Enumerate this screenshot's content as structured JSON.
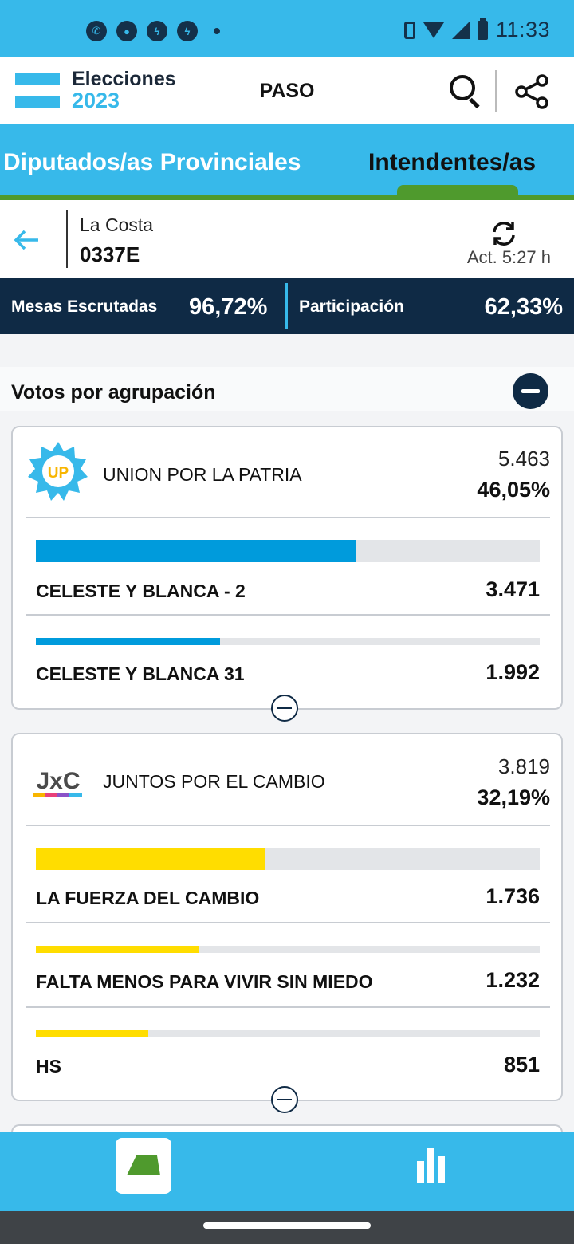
{
  "status_bar": {
    "time": "11:33",
    "notifications": [
      "whatsapp-icon",
      "chat-icon",
      "messenger-icon",
      "messenger-icon"
    ]
  },
  "header": {
    "logo_line1": "Elecciones",
    "logo_line2": "2023",
    "title": "PASO"
  },
  "tabs": [
    {
      "label": "Diputados/as Provinciales",
      "active": false
    },
    {
      "label": "Intendentes/as",
      "active": true
    }
  ],
  "location": {
    "name": "La Costa",
    "code": "0337E",
    "updated": "Act. 5:27 h"
  },
  "stats": {
    "mesas_label": "Mesas Escrutadas",
    "mesas_value": "96,72%",
    "participacion_label": "Participación",
    "participacion_value": "62,33%"
  },
  "section": {
    "title": "Votos por agrupación"
  },
  "parties": [
    {
      "name": "UNION POR LA PATRIA",
      "logo_text": "UP",
      "votes": "5.463",
      "percent": "46,05%",
      "color": "#009bdc",
      "lists": [
        {
          "name": "CELESTE Y BLANCA - 2",
          "votes": "3.471",
          "share": 0.635
        },
        {
          "name": "CELESTE Y BLANCA 31",
          "votes": "1.992",
          "share": 0.365
        }
      ]
    },
    {
      "name": "JUNTOS POR EL CAMBIO",
      "logo_text": "JxC",
      "votes": "3.819",
      "percent": "32,19%",
      "color": "#ffdd00",
      "lists": [
        {
          "name": "LA FUERZA DEL CAMBIO",
          "votes": "1.736",
          "share": 0.455
        },
        {
          "name": "FALTA MENOS PARA VIVIR SIN MIEDO",
          "votes": "1.232",
          "share": 0.323
        },
        {
          "name": "HS",
          "votes": "851",
          "share": 0.223
        }
      ]
    }
  ],
  "bottom_nav": {
    "items": [
      "ballot-icon",
      "bar-chart-icon"
    ],
    "active": 0
  }
}
